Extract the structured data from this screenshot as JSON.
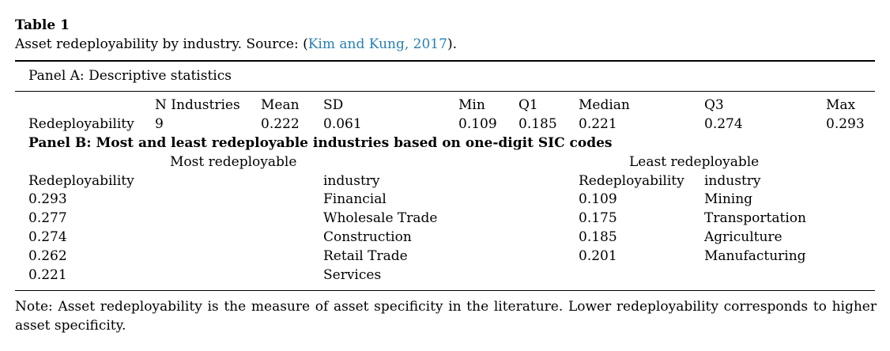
{
  "table": {
    "label": "Table 1",
    "caption_prefix": "Asset redeployability by industry. Source: (",
    "caption_citation": "Kim and Kung, 2017",
    "caption_suffix": ").",
    "panel_a": {
      "title": "Panel A: Descriptive statistics",
      "headers": [
        "N Industries",
        "Mean",
        "SD",
        "Min",
        "Q1",
        "Median",
        "Q3",
        "Max"
      ],
      "row_label": "Redeployability",
      "row_values": [
        "9",
        "0.222",
        "0.061",
        "0.109",
        "0.185",
        "0.221",
        "0.274",
        "0.293"
      ]
    },
    "panel_b": {
      "title": "Panel B: Most and least redeployable industries based on one-digit SIC codes",
      "most_header": "Most redeployable",
      "least_header": "Least redeployable",
      "col_redeploy": "Redeployability",
      "col_industry": "industry",
      "most": [
        {
          "value": "0.293",
          "industry": "Financial"
        },
        {
          "value": "0.277",
          "industry": "Wholesale Trade"
        },
        {
          "value": "0.274",
          "industry": "Construction"
        },
        {
          "value": "0.262",
          "industry": "Retail Trade"
        },
        {
          "value": "0.221",
          "industry": "Services"
        }
      ],
      "least": [
        {
          "value": "0.109",
          "industry": "Mining"
        },
        {
          "value": "0.175",
          "industry": "Transportation"
        },
        {
          "value": "0.185",
          "industry": "Agriculture"
        },
        {
          "value": "0.201",
          "industry": "Manufacturing"
        }
      ]
    },
    "note": "Note: Asset redeployability is the measure of asset specificity in the literature. Lower redeployability corresponds to higher asset specificity."
  }
}
